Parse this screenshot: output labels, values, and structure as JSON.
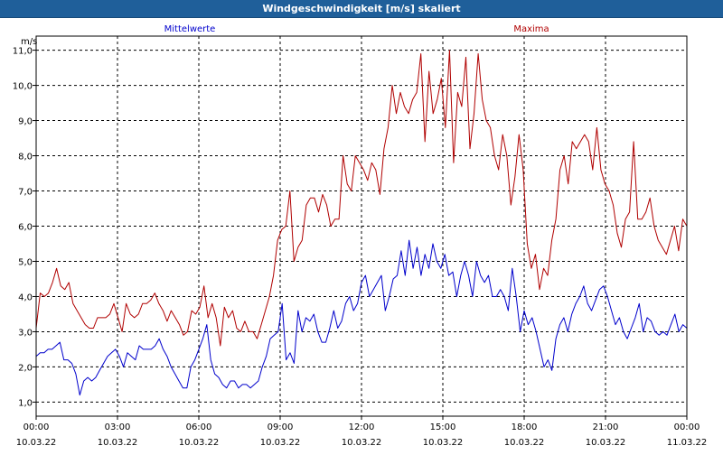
{
  "window": {
    "title": "Windgeschwindigkeit [m/s] skaliert"
  },
  "chart_data": {
    "type": "line",
    "title": "Windgeschwindigkeit [m/s] skaliert",
    "ylabel": "m/s",
    "ylim": [
      0.6,
      11.4
    ],
    "yticks": [
      "1,0",
      "2,0",
      "3,0",
      "4,0",
      "5,0",
      "6,0",
      "7,0",
      "8,0",
      "9,0",
      "10,0",
      "11,0"
    ],
    "xlim": [
      0,
      24
    ],
    "xticks": [
      {
        "time": "00:00",
        "date": "10.03.22"
      },
      {
        "time": "03:00",
        "date": "10.03.22"
      },
      {
        "time": "06:00",
        "date": "10.03.22"
      },
      {
        "time": "09:00",
        "date": "10.03.22"
      },
      {
        "time": "12:00",
        "date": "10.03.22"
      },
      {
        "time": "15:00",
        "date": "10.03.22"
      },
      {
        "time": "18:00",
        "date": "10.03.22"
      },
      {
        "time": "21:00",
        "date": "10.03.22"
      },
      {
        "time": "00:00",
        "date": "11.03.22"
      }
    ],
    "grid": true,
    "series": [
      {
        "name": "Mittelwerte",
        "color": "#0000cc",
        "values": [
          2.3,
          2.4,
          2.4,
          2.5,
          2.5,
          2.6,
          2.7,
          2.2,
          2.2,
          2.1,
          1.8,
          1.2,
          1.6,
          1.7,
          1.6,
          1.7,
          1.9,
          2.1,
          2.3,
          2.4,
          2.5,
          2.3,
          2.0,
          2.4,
          2.3,
          2.2,
          2.6,
          2.5,
          2.5,
          2.5,
          2.6,
          2.8,
          2.5,
          2.3,
          2.0,
          1.8,
          1.6,
          1.4,
          1.4,
          2.0,
          2.2,
          2.5,
          2.8,
          3.2,
          2.2,
          1.8,
          1.7,
          1.5,
          1.4,
          1.6,
          1.6,
          1.4,
          1.5,
          1.5,
          1.4,
          1.5,
          1.6,
          2.0,
          2.3,
          2.8,
          2.9,
          3.0,
          3.8,
          2.2,
          2.4,
          2.1,
          3.6,
          3.0,
          3.4,
          3.3,
          3.5,
          3.0,
          2.7,
          2.7,
          3.1,
          3.6,
          3.1,
          3.3,
          3.8,
          4.0,
          3.6,
          3.8,
          4.4,
          4.6,
          4.0,
          4.2,
          4.4,
          4.6,
          3.6,
          4.0,
          4.5,
          4.6,
          5.3,
          4.6,
          5.6,
          4.8,
          5.4,
          4.6,
          5.2,
          4.8,
          5.5,
          5.0,
          4.8,
          5.2,
          4.6,
          4.7,
          4.0,
          4.6,
          5.0,
          4.6,
          4.0,
          5.0,
          4.6,
          4.4,
          4.6,
          4.0,
          4.0,
          4.2,
          4.0,
          3.6,
          4.8,
          4.0,
          3.0,
          3.6,
          3.2,
          3.4,
          3.0,
          2.5,
          2.0,
          2.2,
          1.9,
          2.8,
          3.2,
          3.4,
          3.0,
          3.5,
          3.8,
          4.0,
          4.3,
          3.8,
          3.6,
          3.9,
          4.2,
          4.3,
          4.0,
          3.6,
          3.2,
          3.4,
          3.0,
          2.8,
          3.1,
          3.4,
          3.8,
          3.0,
          3.4,
          3.3,
          3.0,
          2.9,
          3.0,
          2.9,
          3.2,
          3.5,
          3.0,
          3.2,
          3.1
        ]
      },
      {
        "name": "Maxima",
        "color": "#b00000",
        "values": [
          3.1,
          4.1,
          4.0,
          4.1,
          4.4,
          4.8,
          4.3,
          4.2,
          4.4,
          3.8,
          3.6,
          3.4,
          3.2,
          3.1,
          3.1,
          3.4,
          3.4,
          3.4,
          3.5,
          3.8,
          3.4,
          3.0,
          3.8,
          3.5,
          3.4,
          3.5,
          3.8,
          3.8,
          3.9,
          4.1,
          3.8,
          3.6,
          3.3,
          3.6,
          3.4,
          3.2,
          2.9,
          3.0,
          3.6,
          3.5,
          3.7,
          4.3,
          3.4,
          3.8,
          3.4,
          2.6,
          3.7,
          3.4,
          3.6,
          3.1,
          3.0,
          3.3,
          3.0,
          3.0,
          2.8,
          3.2,
          3.6,
          4.0,
          4.6,
          5.6,
          5.9,
          6.0,
          7.0,
          5.0,
          5.4,
          5.6,
          6.6,
          6.8,
          6.8,
          6.4,
          6.9,
          6.6,
          6.0,
          6.2,
          6.2,
          8.0,
          7.2,
          7.0,
          8.0,
          7.8,
          7.6,
          7.3,
          7.8,
          7.6,
          6.9,
          8.2,
          8.8,
          10.0,
          9.2,
          9.8,
          9.4,
          9.2,
          9.6,
          9.8,
          10.9,
          8.4,
          10.4,
          9.2,
          9.6,
          10.2,
          8.8,
          11.0,
          7.8,
          9.8,
          9.4,
          10.8,
          8.2,
          9.2,
          10.9,
          9.6,
          9.0,
          8.8,
          8.0,
          7.6,
          8.6,
          8.0,
          6.6,
          7.4,
          8.6,
          7.6,
          5.5,
          4.8,
          5.2,
          4.2,
          4.8,
          4.6,
          5.6,
          6.2,
          7.6,
          8.0,
          7.2,
          8.4,
          8.2,
          8.4,
          8.6,
          8.4,
          7.6,
          8.8,
          7.6,
          7.2,
          7.0,
          6.6,
          5.8,
          5.4,
          6.2,
          6.4,
          8.4,
          6.2,
          6.2,
          6.4,
          6.8,
          6.0,
          5.6,
          5.4,
          5.2,
          5.6,
          6.0,
          5.3,
          6.2,
          6.0
        ]
      }
    ]
  }
}
